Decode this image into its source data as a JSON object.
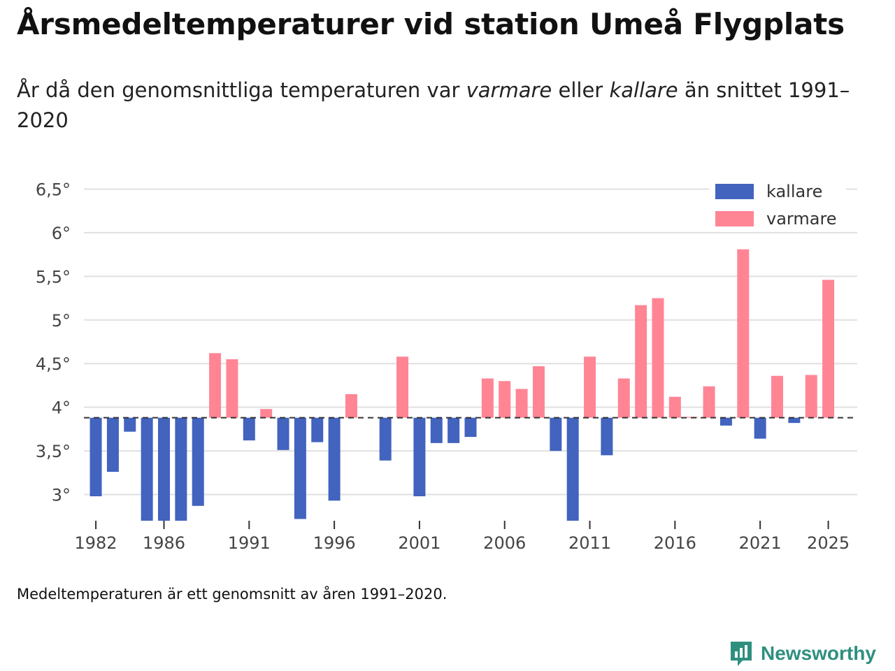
{
  "title": "Årsmedeltemperaturer vid station Umeå Flygplats",
  "subtitle": {
    "part1": "År då den genomsnittliga temperaturen var ",
    "warm_word": "varmare",
    "part2": " eller ",
    "cold_word": "kallare",
    "part3": " än snittet 1991–2020"
  },
  "note": "Medeltemperaturen är ett genomsnitt av åren 1991–2020.",
  "brand": {
    "name": "Newsworthy",
    "icon": "newsworthy-chart-icon"
  },
  "colors": {
    "kallare": "#4263be",
    "varmare": "#ff8595",
    "grid": "#e0e0e0",
    "baseline": "#333333",
    "brand": "#2f8f7f"
  },
  "chart_data": {
    "type": "bar",
    "title": "Årsmedeltemperaturer vid station Umeå Flygplats",
    "xlabel": "",
    "ylabel": "",
    "baseline": 3.88,
    "ylim": [
      2.7,
      6.6
    ],
    "yticks": [
      3,
      3.5,
      4,
      4.5,
      5,
      5.5,
      6,
      6.5
    ],
    "ytick_labels": [
      "3°",
      "3,5°",
      "4°",
      "4,5°",
      "5°",
      "5,5°",
      "6°",
      "6,5°"
    ],
    "xticks": [
      1982,
      1986,
      1991,
      1996,
      2001,
      2006,
      2011,
      2016,
      2021,
      2025
    ],
    "xtick_labels": [
      "1982",
      "1986",
      "1991",
      "1996",
      "2001",
      "2006",
      "2011",
      "2016",
      "2021",
      "2025"
    ],
    "legend": [
      {
        "key": "kallare",
        "label": "kallare"
      },
      {
        "key": "varmare",
        "label": "varmare"
      }
    ],
    "legend_position": "top-right",
    "categories": [
      1982,
      1983,
      1984,
      1985,
      1986,
      1987,
      1988,
      1989,
      1990,
      1991,
      1992,
      1993,
      1994,
      1995,
      1996,
      1997,
      1998,
      1999,
      2000,
      2001,
      2002,
      2003,
      2004,
      2005,
      2006,
      2007,
      2008,
      2009,
      2010,
      2011,
      2012,
      2013,
      2014,
      2015,
      2016,
      2017,
      2018,
      2019,
      2020,
      2021,
      2022,
      2023,
      2024,
      2025
    ],
    "values": [
      2.98,
      3.26,
      3.72,
      2.7,
      2.7,
      2.7,
      2.87,
      4.62,
      4.55,
      3.62,
      3.98,
      3.51,
      2.72,
      3.6,
      2.93,
      4.15,
      null,
      3.39,
      4.58,
      2.98,
      3.59,
      3.59,
      3.66,
      4.33,
      4.3,
      4.21,
      4.47,
      3.5,
      2.7,
      4.58,
      3.45,
      4.33,
      5.17,
      5.25,
      4.12,
      3.89,
      4.24,
      3.79,
      5.81,
      3.64,
      4.36,
      3.82,
      4.37,
      5.46
    ]
  }
}
